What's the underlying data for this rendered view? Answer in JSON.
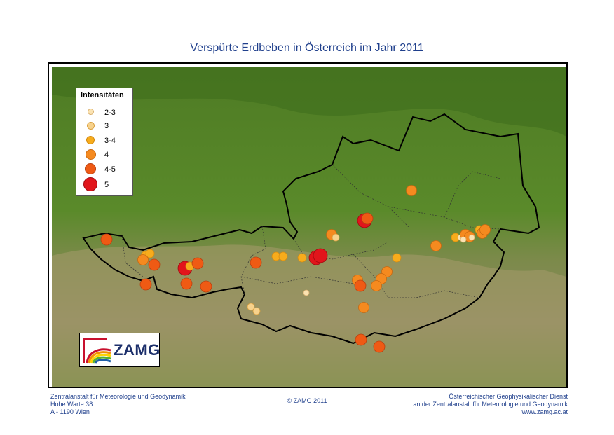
{
  "title": "Verspürte Erdbeben in Österreich im Jahr 2011",
  "legend": {
    "title": "Intensitäten",
    "items": [
      {
        "label": "2-3",
        "color": "#fbe3b2"
      },
      {
        "label": "3",
        "color": "#f7d28c"
      },
      {
        "label": "3-4",
        "color": "#f7ac1c"
      },
      {
        "label": "4",
        "color": "#f58a1f"
      },
      {
        "label": "4-5",
        "color": "#ef5a14"
      },
      {
        "label": "5",
        "color": "#e1151b"
      }
    ]
  },
  "logo": {
    "text": "ZAMG"
  },
  "footer": {
    "left": [
      "Zentralanstalt für Meteorologie und Geodynamik",
      "Hohe Warte 38",
      "A - 1190 Wien"
    ],
    "center": "© ZAMG 2011",
    "right": [
      "Österreichischer Geophysikalischer Dienst",
      "an der Zentralanstalt für Meteorologie und Geodynamik",
      "www.zamg.ac.at"
    ]
  },
  "colors": {
    "lowland": "#4a7a1f",
    "mountain": "#9a8a5c",
    "border": "#000000",
    "title_text": "#1f3f8c"
  }
}
